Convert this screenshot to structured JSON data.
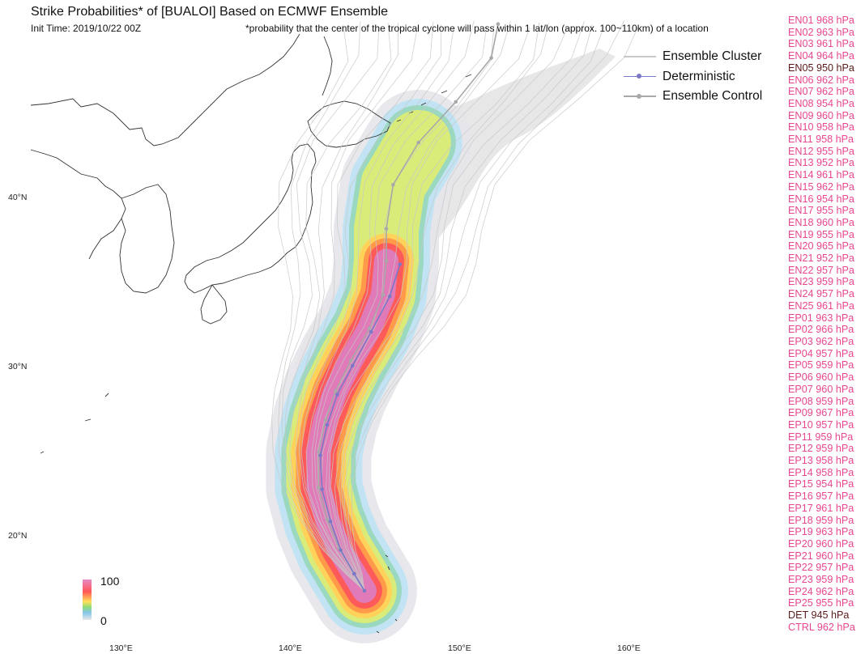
{
  "header": {
    "title": "Strike Probabilities* of [BUALOI] Based on ECMWF Ensemble",
    "init_time": "Init Time: 2019/10/22 00Z",
    "footnote": "*probability that the center of the tropical cyclone will pass within 1 lat/lon (approx. 100~110km) of a location"
  },
  "members": [
    {
      "label": "EN01 968 hPa"
    },
    {
      "label": "EN02 963 hPa"
    },
    {
      "label": "EN03 961 hPa"
    },
    {
      "label": "EN04 964 hPa"
    },
    {
      "label": "EN05 950 hPa",
      "highlight": true
    },
    {
      "label": "EN06 962 hPa"
    },
    {
      "label": "EN07 962 hPa"
    },
    {
      "label": "EN08 954 hPa"
    },
    {
      "label": "EN09 960 hPa"
    },
    {
      "label": "EN10 958 hPa"
    },
    {
      "label": "EN11 958 hPa"
    },
    {
      "label": "EN12 955 hPa"
    },
    {
      "label": "EN13 952 hPa"
    },
    {
      "label": "EN14 961 hPa"
    },
    {
      "label": "EN15 962 hPa"
    },
    {
      "label": "EN16 954 hPa"
    },
    {
      "label": "EN17 955 hPa"
    },
    {
      "label": "EN18 960 hPa"
    },
    {
      "label": "EN19 955 hPa"
    },
    {
      "label": "EN20 965 hPa"
    },
    {
      "label": "EN21 952 hPa"
    },
    {
      "label": "EN22 957 hPa"
    },
    {
      "label": "EN23 959 hPa"
    },
    {
      "label": "EN24 957 hPa"
    },
    {
      "label": "EN25 961 hPa"
    },
    {
      "label": "EP01 963 hPa"
    },
    {
      "label": "EP02 966 hPa"
    },
    {
      "label": "EP03 962 hPa"
    },
    {
      "label": "EP04 957 hPa"
    },
    {
      "label": "EP05 959 hPa"
    },
    {
      "label": "EP06 960 hPa"
    },
    {
      "label": "EP07 960 hPa"
    },
    {
      "label": "EP08 959 hPa"
    },
    {
      "label": "EP09 967 hPa"
    },
    {
      "label": "EP10 957 hPa"
    },
    {
      "label": "EP11 959 hPa"
    },
    {
      "label": "EP12 959 hPa"
    },
    {
      "label": "EP13 958 hPa"
    },
    {
      "label": "EP14 958 hPa"
    },
    {
      "label": "EP15 954 hPa"
    },
    {
      "label": "EP16 957 hPa"
    },
    {
      "label": "EP17 961 hPa"
    },
    {
      "label": "EP18 959 hPa"
    },
    {
      "label": "EP19 963 hPa"
    },
    {
      "label": "EP20 960 hPa"
    },
    {
      "label": "EP21 960 hPa"
    },
    {
      "label": "EP22 957 hPa"
    },
    {
      "label": "EP23 959 hPa"
    },
    {
      "label": "EP24 962 hPa"
    },
    {
      "label": "EP25 955 hPa"
    },
    {
      "label": "DET 945 hPa",
      "highlight": true
    },
    {
      "label": "CTRL 962 hPa"
    }
  ],
  "legend": {
    "cluster": "Ensemble Cluster",
    "deterministic": "Deterministic",
    "control": "Ensemble Control"
  },
  "axes": {
    "lat_labels": [
      "40°N",
      "30°N",
      "20°N"
    ],
    "lon_labels": [
      "130°E",
      "140°E",
      "150°E",
      "160°E"
    ]
  },
  "colorbar": {
    "max": "100",
    "min": "0"
  },
  "colors": {
    "member_label": "#e8468f",
    "highlight_label": "#5a1a1a",
    "deterministic": "#7b78c8",
    "control": "#a8a8a8",
    "cluster": "#c8c8c8",
    "coastline": "#333333"
  },
  "tracks": {
    "deterministic": [
      [
        144.3,
        16.8
      ],
      [
        143.7,
        17.8
      ],
      [
        142.9,
        19.2
      ],
      [
        142.3,
        20.9
      ],
      [
        141.8,
        22.8
      ],
      [
        141.7,
        24.8
      ],
      [
        142.1,
        26.6
      ],
      [
        142.7,
        28.4
      ],
      [
        143.6,
        30.1
      ],
      [
        144.7,
        32.1
      ],
      [
        145.8,
        34.2
      ],
      [
        146.4,
        36.1
      ]
    ],
    "control": [
      [
        144.3,
        16.8
      ],
      [
        143.7,
        17.8
      ],
      [
        142.8,
        19.3
      ],
      [
        142.1,
        21.0
      ],
      [
        141.6,
        22.9
      ],
      [
        141.6,
        25.0
      ],
      [
        142.0,
        26.9
      ],
      [
        142.6,
        28.6
      ],
      [
        143.5,
        30.4
      ],
      [
        144.6,
        32.3
      ],
      [
        145.4,
        34.3
      ],
      [
        145.6,
        36.3
      ],
      [
        145.6,
        38.2
      ],
      [
        146.0,
        40.8
      ],
      [
        147.5,
        43.3
      ],
      [
        149.7,
        45.7
      ],
      [
        151.8,
        48.3
      ],
      [
        152.2,
        50.3
      ]
    ]
  }
}
